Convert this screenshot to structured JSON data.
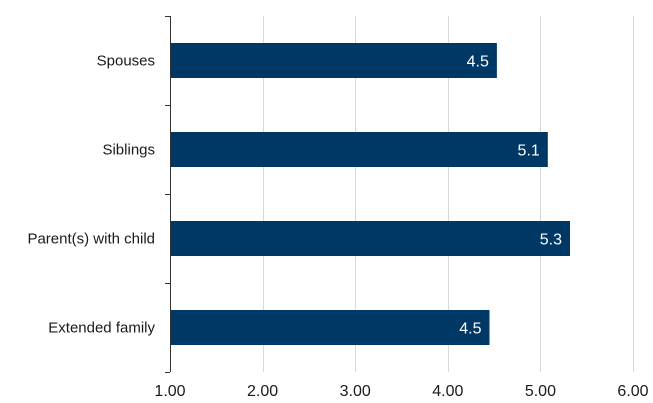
{
  "chart_data": {
    "type": "bar",
    "orientation": "horizontal",
    "categories": [
      "Spouses",
      "Siblings",
      "Parent(s) with child",
      "Extended family"
    ],
    "values": [
      4.53,
      5.08,
      5.32,
      4.45
    ],
    "data_labels": [
      "4.5",
      "5.1",
      "5.3",
      "4.5"
    ],
    "xlim": [
      1,
      6
    ],
    "xticks": [
      1,
      2,
      3,
      4,
      5,
      6
    ],
    "xtick_labels": [
      "1.00",
      "2.00",
      "3.00",
      "4.00",
      "5.00",
      "6.00"
    ],
    "title": "",
    "xlabel": "",
    "ylabel": "",
    "grid": "vertical",
    "legend": "none",
    "bar_color": "#003865"
  }
}
